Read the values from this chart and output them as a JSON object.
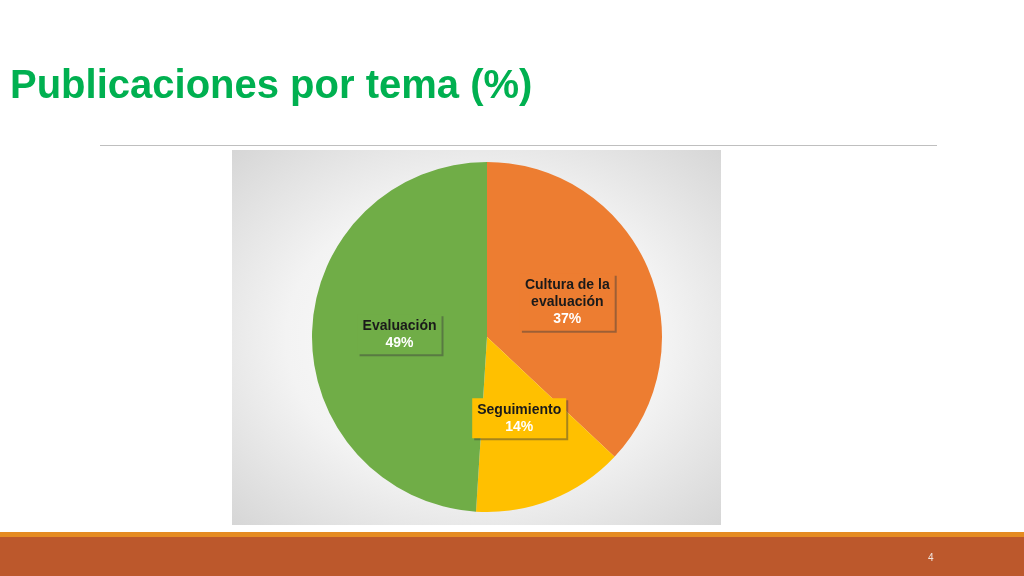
{
  "chart_data": {
    "type": "pie",
    "title": "Publicaciones por tema (%)",
    "categories": [
      "Cultura de la evaluación",
      "Seguimiento",
      "Evaluación"
    ],
    "values": [
      37,
      14,
      49
    ],
    "colors": [
      "#ed7d31",
      "#ffc000",
      "#70ad47"
    ],
    "value_labels": [
      "37%",
      "14%",
      "49%"
    ],
    "annotations": [
      "4"
    ]
  }
}
